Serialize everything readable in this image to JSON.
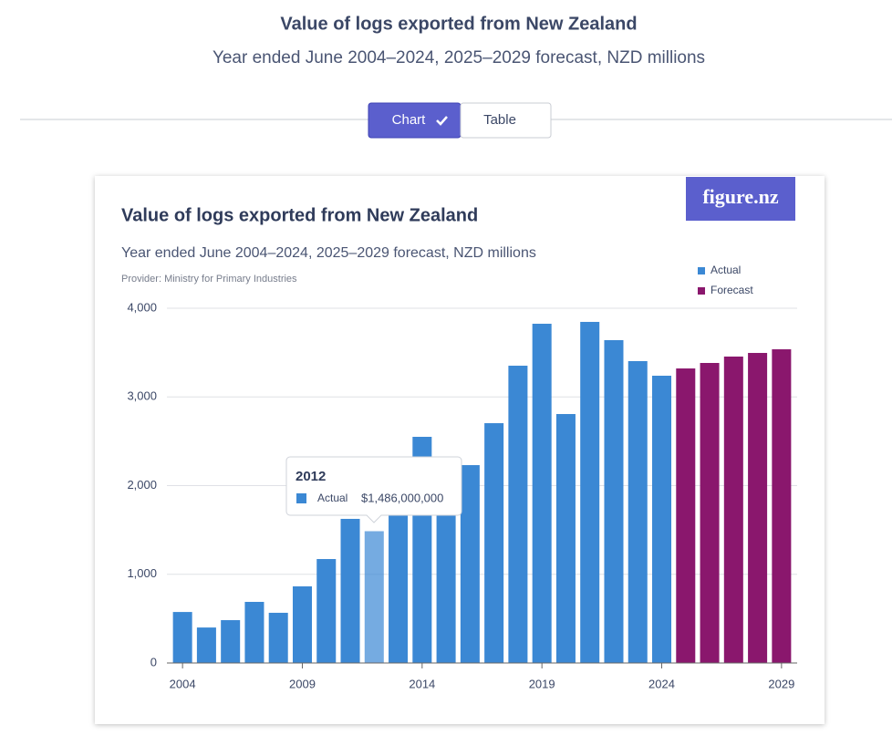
{
  "page": {
    "title": "Value of logs exported from New Zealand",
    "subtitle": "Year ended June 2004–2024, 2025–2029 forecast, NZD millions",
    "tabs": [
      "Chart",
      "Table"
    ],
    "logo": "figure.nz"
  },
  "chart_data": {
    "type": "bar",
    "title": "Value of logs exported from New Zealand",
    "subtitle": "Year ended June 2004–2024, 2025–2029 forecast, NZD millions",
    "source": "Provider: Ministry for Primary Industries",
    "x": [
      2004,
      2005,
      2006,
      2007,
      2008,
      2009,
      2010,
      2011,
      2012,
      2013,
      2014,
      2015,
      2016,
      2017,
      2018,
      2019,
      2020,
      2021,
      2022,
      2023,
      2024,
      2025,
      2026,
      2027,
      2028,
      2029
    ],
    "series": [
      {
        "name": "Actual",
        "color": "#3b88d4",
        "values": [
          575,
          400,
          483,
          689,
          566,
          864,
          1172,
          1625,
          1486,
          1700,
          2550,
          2100,
          2231,
          2704,
          3352,
          3825,
          2807,
          3846,
          3640,
          3404,
          3239,
          null,
          null,
          null,
          null,
          null
        ]
      },
      {
        "name": "Forecast",
        "color": "#8a176d",
        "values": [
          null,
          null,
          null,
          null,
          null,
          null,
          null,
          null,
          null,
          null,
          null,
          null,
          null,
          null,
          null,
          null,
          null,
          null,
          null,
          null,
          null,
          3321,
          3383,
          3455,
          3496,
          3537
        ]
      }
    ],
    "xlim": [
      2003.5,
      2029.5
    ],
    "xticks": [
      2004,
      2009,
      2014,
      2019,
      2024,
      2029
    ],
    "ylim": [
      0,
      4000
    ],
    "yticks": [
      0,
      {
        "value": 1000,
        "label": "1,000"
      },
      {
        "value": 2000,
        "label": "2,000"
      },
      {
        "value": 3000,
        "label": "3,000"
      },
      {
        "value": 4000,
        "label": "4,000"
      }
    ],
    "grid": true,
    "legend": "top-right",
    "tooltip": {
      "x": "2012",
      "series_name": "Actual",
      "value_label": "$1,486,000,000"
    }
  }
}
